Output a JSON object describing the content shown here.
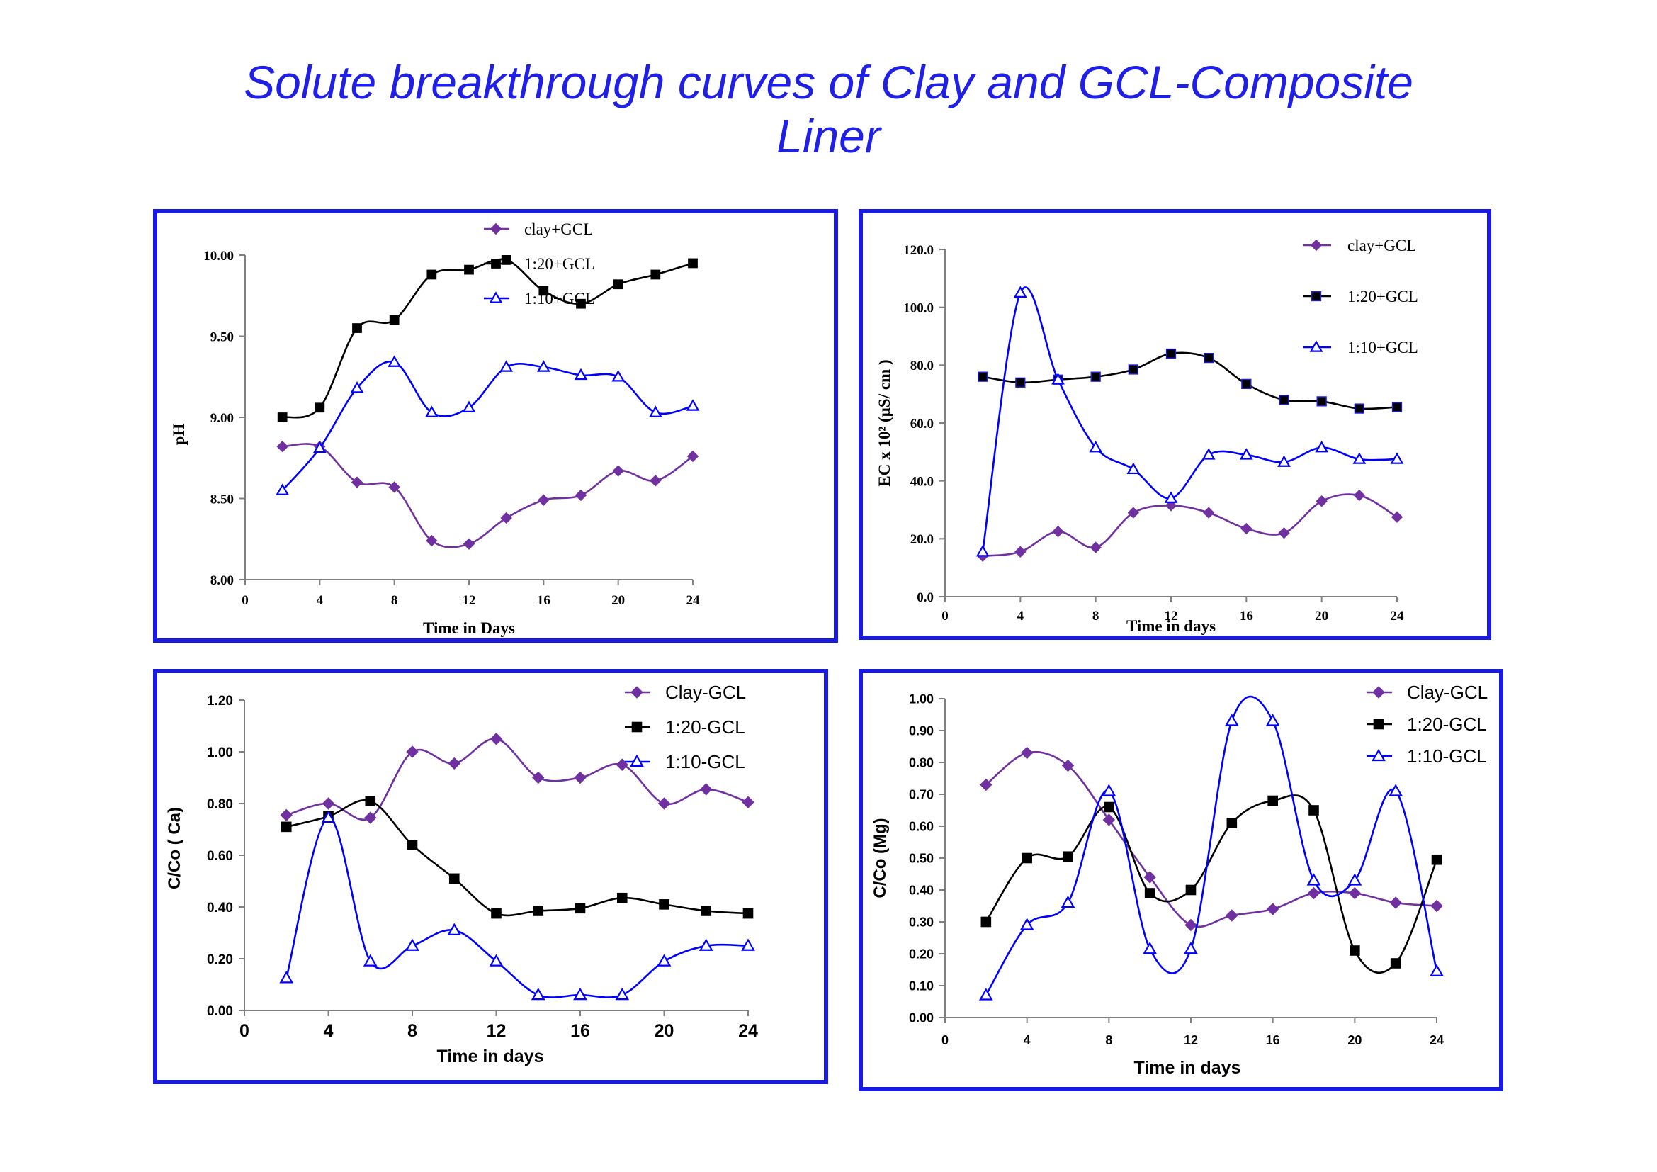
{
  "page": {
    "title_line1": "Solute breakthrough curves of Clay and GCL-Composite",
    "title_line2": "Liner"
  },
  "colors": {
    "title": "#1f1fe6",
    "frame": "#1a1ae0",
    "purple": "#7030a0",
    "black": "#000000",
    "blue": "#0000ff"
  },
  "chart_data": [
    {
      "type": "line",
      "xlabel": "Time in Days",
      "ylabel": "pH",
      "xlim": [
        0,
        24
      ],
      "ylim": [
        8.0,
        10.0
      ],
      "x_ticks": [
        "0",
        "4",
        "8",
        "12",
        "16",
        "20",
        "24"
      ],
      "y_ticks": [
        "8.00",
        "8.50",
        "9.00",
        "9.50",
        "10.00"
      ],
      "legend_position": "top-right",
      "x": [
        2,
        4,
        6,
        8,
        10,
        12,
        14,
        16,
        18,
        20,
        22,
        24
      ],
      "series": [
        {
          "name": "clay+GCL",
          "marker": "diamond",
          "color": "#7030a0",
          "values": [
            8.82,
            8.82,
            8.6,
            8.57,
            8.24,
            8.22,
            8.38,
            8.49,
            8.52,
            8.67,
            8.61,
            8.76
          ]
        },
        {
          "name": "1:20+GCL",
          "marker": "square",
          "color": "#000000",
          "values": [
            9.0,
            9.06,
            9.55,
            9.6,
            9.88,
            9.91,
            9.97,
            9.78,
            9.7,
            9.82,
            9.88,
            9.95
          ]
        },
        {
          "name": "1:10+GCL",
          "marker": "triangle",
          "color": "#0000ff",
          "values": [
            8.55,
            8.81,
            9.18,
            9.34,
            9.03,
            9.06,
            9.31,
            9.31,
            9.26,
            9.25,
            9.03,
            9.07
          ]
        }
      ]
    },
    {
      "type": "line",
      "xlabel": "Time in days",
      "ylabel": "EC x 10² (µS/ cm )",
      "xlim": [
        0,
        24
      ],
      "ylim": [
        0,
        120
      ],
      "x_ticks": [
        "0",
        "4",
        "8",
        "12",
        "16",
        "20",
        "24"
      ],
      "y_ticks": [
        "0.0",
        "20.0",
        "40.0",
        "60.0",
        "80.0",
        "100.0",
        "120.0"
      ],
      "legend_position": "top-right",
      "x": [
        2,
        4,
        6,
        8,
        10,
        12,
        14,
        16,
        18,
        20,
        22,
        24
      ],
      "series": [
        {
          "name": "clay+GCL",
          "marker": "diamond",
          "color": "#7030a0",
          "values": [
            14,
            15.5,
            22.5,
            17,
            29,
            31.5,
            29,
            23.5,
            22,
            33,
            35,
            27.5
          ]
        },
        {
          "name": "1:20+GCL",
          "marker": "square",
          "color": "#000000",
          "values": [
            76,
            74,
            75,
            76,
            78.5,
            84,
            82.5,
            73.5,
            68,
            67.5,
            65,
            65.5
          ]
        },
        {
          "name": "1:10+GCL",
          "marker": "triangle",
          "color": "#0000ff",
          "values": [
            15.5,
            105,
            75,
            51.5,
            44,
            34,
            49,
            49,
            46.5,
            51.5,
            47.5,
            47.5
          ]
        }
      ]
    },
    {
      "type": "line",
      "xlabel": "Time in days",
      "ylabel": "C/Co ( Ca)",
      "xlim": [
        0,
        24
      ],
      "ylim": [
        0,
        1.2
      ],
      "x_ticks": [
        "0",
        "4",
        "8",
        "12",
        "16",
        "20",
        "24"
      ],
      "y_ticks": [
        "0.00",
        "0.20",
        "0.40",
        "0.60",
        "0.80",
        "1.00",
        "1.20"
      ],
      "legend_position": "top-right",
      "x": [
        2,
        4,
        6,
        8,
        10,
        12,
        14,
        16,
        18,
        20,
        22,
        24
      ],
      "series": [
        {
          "name": "Clay-GCL",
          "marker": "diamond",
          "color": "#7030a0",
          "values": [
            0.755,
            0.8,
            0.745,
            1.0,
            0.955,
            1.05,
            0.9,
            0.9,
            0.95,
            0.8,
            0.855,
            0.805
          ]
        },
        {
          "name": "1:20-GCL",
          "marker": "square",
          "color": "#000000",
          "values": [
            0.71,
            0.75,
            0.81,
            0.64,
            0.51,
            0.375,
            0.385,
            0.395,
            0.435,
            0.41,
            0.385,
            0.375
          ]
        },
        {
          "name": "1:10-GCL",
          "marker": "triangle",
          "color": "#0000ff",
          "values": [
            0.125,
            0.745,
            0.19,
            0.25,
            0.31,
            0.19,
            0.06,
            0.06,
            0.06,
            0.19,
            0.25,
            0.25
          ]
        }
      ]
    },
    {
      "type": "line",
      "xlabel": "Time in days",
      "ylabel": "C/Co (Mg)",
      "xlim": [
        0,
        24
      ],
      "ylim": [
        0,
        1.0
      ],
      "x_ticks": [
        "0",
        "4",
        "8",
        "12",
        "16",
        "20",
        "24"
      ],
      "y_ticks": [
        "0.00",
        "0.10",
        "0.20",
        "0.30",
        "0.40",
        "0.50",
        "0.60",
        "0.70",
        "0.80",
        "0.90",
        "1.00"
      ],
      "legend_position": "top-right",
      "x": [
        2,
        4,
        6,
        8,
        10,
        12,
        14,
        16,
        18,
        20,
        22,
        24
      ],
      "series": [
        {
          "name": "Clay-GCL",
          "marker": "diamond",
          "color": "#7030a0",
          "values": [
            0.73,
            0.83,
            0.79,
            0.62,
            0.44,
            0.29,
            0.32,
            0.34,
            0.39,
            0.39,
            0.36,
            0.35
          ]
        },
        {
          "name": "1:20-GCL",
          "marker": "square",
          "color": "#000000",
          "values": [
            0.3,
            0.5,
            0.505,
            0.66,
            0.39,
            0.4,
            0.61,
            0.68,
            0.65,
            0.21,
            0.17,
            0.495
          ]
        },
        {
          "name": "1:10-GCL",
          "marker": "triangle",
          "color": "#0000ff",
          "values": [
            0.07,
            0.29,
            0.36,
            0.71,
            0.215,
            0.215,
            0.93,
            0.93,
            0.43,
            0.43,
            0.71,
            0.145
          ]
        }
      ]
    }
  ]
}
